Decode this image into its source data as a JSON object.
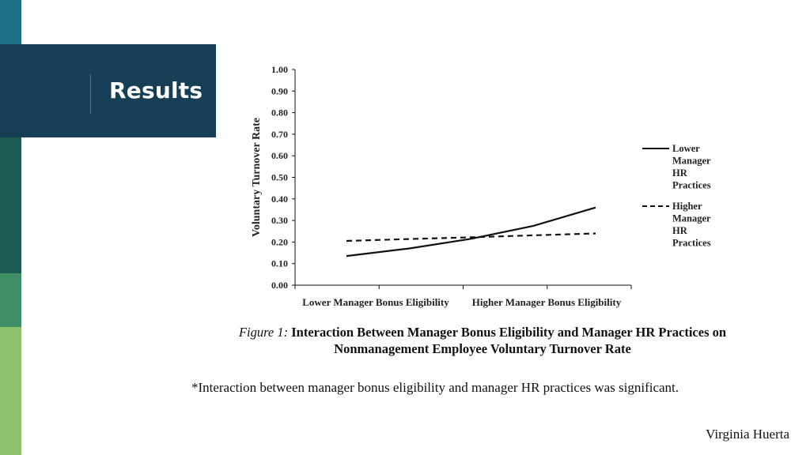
{
  "slide": {
    "title": "Results",
    "note": "*Interaction between manager bonus eligibility and manager HR practices was significant.",
    "author": "Virginia Huerta"
  },
  "caption": {
    "figure_label": "Figure 1:",
    "title": "Interaction Between Manager Bonus Eligibility and Manager HR Practices on Nonmanagement Employee Voluntary Turnover Rate"
  },
  "chart_data": {
    "type": "line",
    "title": "",
    "ylabel": "Voluntary Turnover Rate",
    "xlabel": "",
    "ylim": [
      0,
      1
    ],
    "yticks": [
      "0.00",
      "0.10",
      "0.20",
      "0.30",
      "0.40",
      "0.50",
      "0.60",
      "0.70",
      "0.80",
      "0.90",
      "1.00"
    ],
    "categories": [
      "Lower Manager Bonus Eligibility",
      "Higher Manager Bonus Eligibility"
    ],
    "x": [
      0,
      0.25,
      0.5,
      0.75,
      1
    ],
    "series": [
      {
        "name": "Lower Manager HR Practices",
        "style": "solid",
        "values": [
          0.135,
          0.17,
          0.215,
          0.275,
          0.36
        ]
      },
      {
        "name": "Higher Manager HR Practices",
        "style": "dashed",
        "values": [
          0.205,
          0.214,
          0.222,
          0.231,
          0.24
        ]
      }
    ],
    "legend_position": "right",
    "grid": false
  },
  "colors": {
    "line": "#111111",
    "title_bg": "#163f56"
  }
}
